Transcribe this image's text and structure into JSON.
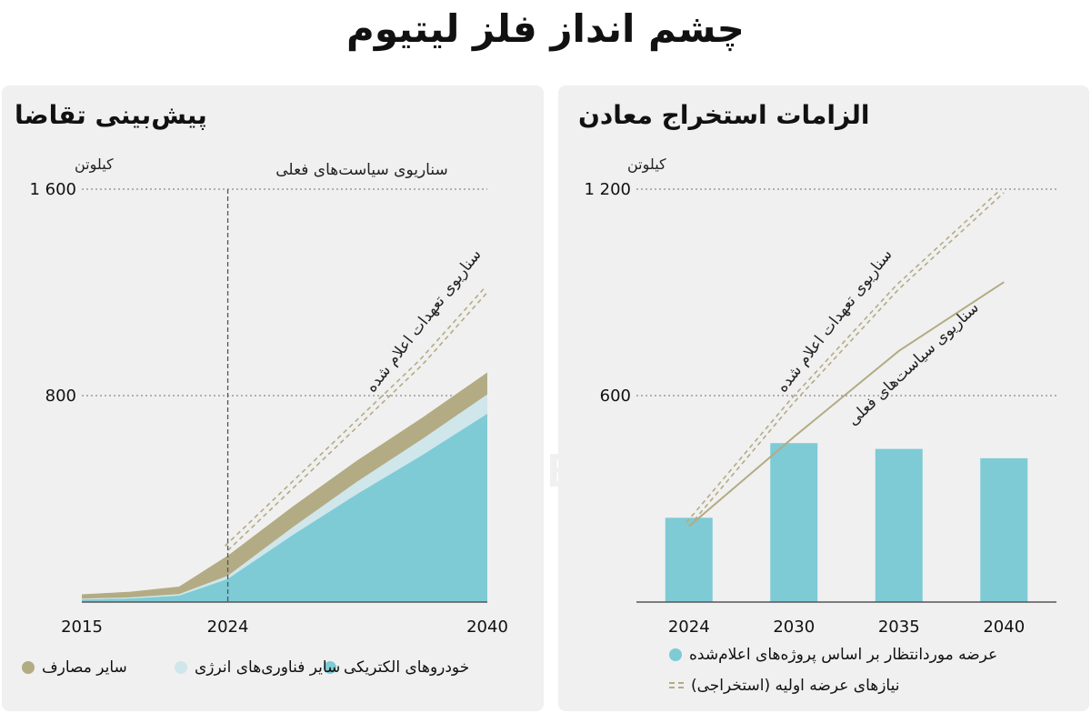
{
  "main_title": "چشم انداز فلز لیتیوم",
  "watermark": "DONYA-E-EQTESAD",
  "chart_data": [
    {
      "type": "area",
      "title": "پیش‌بینی تقاضا",
      "ylabel": "کیلوتن",
      "ylim": [
        0,
        1600
      ],
      "yticks": [
        {
          "value": 1600,
          "label": "1 600"
        },
        {
          "value": 800,
          "label": "800"
        }
      ],
      "xlim": [
        2015,
        2040
      ],
      "xticks": [
        2015,
        2024,
        2040
      ],
      "marker_year": 2024,
      "stacked_series": [
        {
          "name": "خودروهای الکتریکی",
          "color": "#7ecbd6",
          "x": [
            2015,
            2018,
            2021,
            2024,
            2028,
            2032,
            2036,
            2040
          ],
          "values": [
            10,
            14,
            25,
            90,
            260,
            420,
            570,
            730
          ]
        },
        {
          "name": "سایر فناوری‌های انرژی",
          "color": "#cfe6eb",
          "x": [
            2015,
            2018,
            2021,
            2024,
            2028,
            2032,
            2036,
            2040
          ],
          "values": [
            3,
            4,
            6,
            12,
            30,
            48,
            62,
            75
          ]
        },
        {
          "name": "سایر مصارف",
          "color": "#b3ab84",
          "x": [
            2015,
            2018,
            2021,
            2024,
            2028,
            2032,
            2036,
            2040
          ],
          "values": [
            17,
            22,
            29,
            78,
            80,
            82,
            83,
            85
          ]
        }
      ],
      "dashed_series": [
        {
          "name": "سناریوی تعهدات اعلام شده",
          "color": "#b3ab84",
          "x": [
            2024,
            2028,
            2032,
            2036,
            2040
          ],
          "values": [
            200,
            440,
            680,
            920,
            1200
          ]
        }
      ],
      "annotations": [
        {
          "text": "سناریوی سیاست‌های فعلی"
        },
        {
          "text": "سناریوی تعهدات اعلام شده"
        }
      ]
    },
    {
      "type": "bar",
      "title": "الزامات استخراج  معادن",
      "ylabel": "کیلوتن",
      "ylim": [
        0,
        1200
      ],
      "yticks": [
        {
          "value": 1200,
          "label": "1 200"
        },
        {
          "value": 600,
          "label": "600"
        }
      ],
      "categories": [
        "2024",
        "2030",
        "2035",
        "2040"
      ],
      "bar_series": {
        "name": "عرضه موردانتظار بر اساس پروژه‌های اعلام‌شده",
        "color": "#7ecbd6",
        "values": [
          245,
          462,
          445,
          418
        ]
      },
      "line_series": [
        {
          "name": "سناریوی تعهدات اعلام شده",
          "color": "#b3ab84",
          "style": "dashed",
          "x": [
            2024,
            2030,
            2035,
            2040
          ],
          "values": [
            220,
            580,
            910,
            1190
          ]
        },
        {
          "name": "سناریوی سیاست‌های فعلی",
          "color": "#b3ab84",
          "style": "solid",
          "x": [
            2024,
            2030,
            2035,
            2040
          ],
          "values": [
            220,
            480,
            730,
            930
          ]
        }
      ],
      "legend": [
        {
          "label": "عرضه موردانتظار بر اساس پروژه‌های اعلام‌شده",
          "kind": "dot",
          "color": "#7ecbd6"
        },
        {
          "label": "نیازهای عرضه اولیه (استخراجی)",
          "kind": "dash",
          "color": "#b3ab84"
        }
      ]
    }
  ]
}
